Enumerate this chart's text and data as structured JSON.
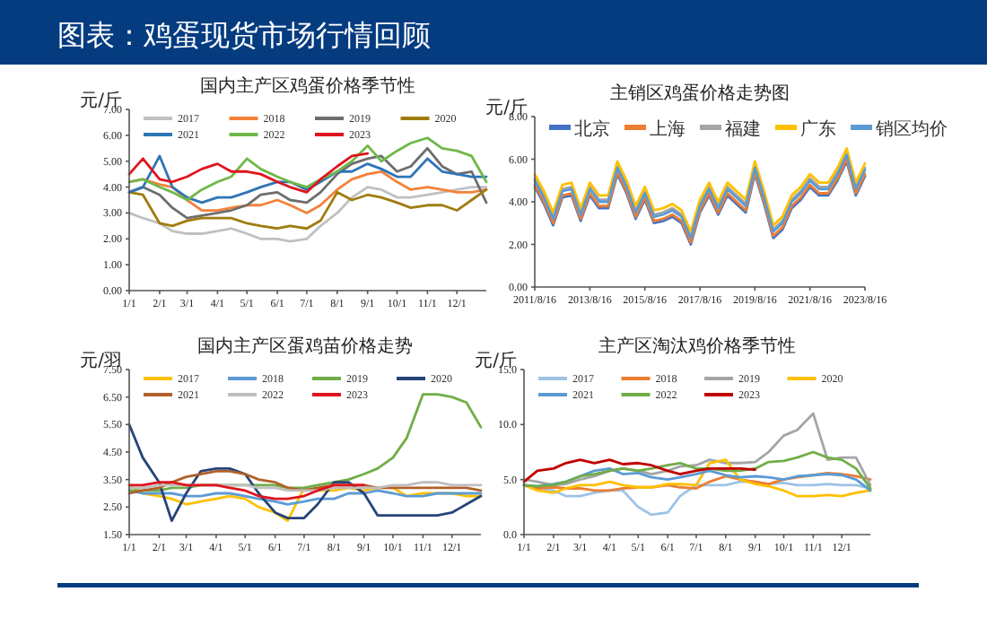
{
  "chart_data": [
    {
      "type": "line",
      "title": "图表：鸡蛋现货市场行情回顾",
      "subtitle": "国内主产区鸡蛋价格季节性",
      "ylabel": "元/斤",
      "legend": "top",
      "x": [
        "--01-01",
        "--01-15",
        "--02-01",
        "--02-14",
        "--03-01",
        "--03-16",
        "--04-01",
        "--04-15",
        "--05-01",
        "--05-15",
        "--06-01",
        "--06-14",
        "--07-01",
        "--07-15",
        "--08-01",
        "--08-16",
        "--09-01",
        "--09-15",
        "--10-01",
        "--10-15",
        "--11-01",
        "--11-16",
        "--12-01",
        "--12-16",
        "--12-31"
      ],
      "xlim": [
        "--01-01",
        "--12-31"
      ],
      "xticks": [
        {
          "value": "--01-01",
          "label": "1/1"
        },
        {
          "value": "--02-01",
          "label": "2/1"
        },
        {
          "value": "--03-01",
          "label": "3/1"
        },
        {
          "value": "--04-01",
          "label": "4/1"
        },
        {
          "value": "--05-01",
          "label": "5/1"
        },
        {
          "value": "--06-01",
          "label": "6/1"
        },
        {
          "value": "--07-01",
          "label": "7/1"
        },
        {
          "value": "--08-01",
          "label": "8/1"
        },
        {
          "value": "--09-01",
          "label": "9/1"
        },
        {
          "value": "--10-01",
          "label": "10/1"
        },
        {
          "value": "--11-01",
          "label": "11/1"
        },
        {
          "value": "--12-01",
          "label": "12/1"
        }
      ],
      "ylim": [
        0,
        7
      ],
      "yticks": [
        {
          "value": 0,
          "label": "0.00"
        },
        {
          "value": 1,
          "label": "1.00"
        },
        {
          "value": 2,
          "label": "2.00"
        },
        {
          "value": 3,
          "label": "3.00"
        },
        {
          "value": 4,
          "label": "4.00"
        },
        {
          "value": 5,
          "label": "5.00"
        },
        {
          "value": 6,
          "label": "6.00"
        },
        {
          "value": 7,
          "label": "7.00"
        }
      ],
      "series": [
        {
          "name": "2017",
          "color": "#c0c0c0",
          "values": [
            3.0,
            2.8,
            2.6,
            2.3,
            2.2,
            2.2,
            2.3,
            2.4,
            2.2,
            2.0,
            2.0,
            1.9,
            2.0,
            2.5,
            3.0,
            3.6,
            4.0,
            3.9,
            3.6,
            3.6,
            3.7,
            3.8,
            3.9,
            4.0,
            4.0
          ]
        },
        {
          "name": "2018",
          "color": "#f4813a",
          "values": [
            4.2,
            4.3,
            4.1,
            4.0,
            3.5,
            3.1,
            3.1,
            3.2,
            3.3,
            3.3,
            3.5,
            3.3,
            3.0,
            3.3,
            3.9,
            4.3,
            4.5,
            4.6,
            4.2,
            3.9,
            4.0,
            3.9,
            3.8,
            3.8,
            3.9
          ]
        },
        {
          "name": "2019",
          "color": "#6d6d6d",
          "values": [
            3.8,
            4.0,
            3.7,
            3.2,
            2.8,
            2.9,
            3.0,
            3.1,
            3.3,
            3.7,
            3.8,
            3.5,
            3.4,
            3.8,
            4.5,
            4.9,
            5.1,
            5.2,
            4.6,
            4.8,
            5.5,
            4.8,
            4.5,
            4.6,
            3.4
          ]
        },
        {
          "name": "2020",
          "color": "#a07c10",
          "values": [
            3.8,
            3.7,
            2.6,
            2.5,
            2.7,
            2.8,
            2.8,
            2.8,
            2.6,
            2.5,
            2.4,
            2.5,
            2.4,
            2.7,
            3.8,
            3.5,
            3.7,
            3.6,
            3.4,
            3.2,
            3.3,
            3.3,
            3.1,
            3.5,
            3.9
          ]
        },
        {
          "name": "2021",
          "color": "#2e75b6",
          "values": [
            3.8,
            4.0,
            5.2,
            4.0,
            3.6,
            3.4,
            3.6,
            3.6,
            3.8,
            4.0,
            4.2,
            4.2,
            3.9,
            4.2,
            4.6,
            4.6,
            4.9,
            4.7,
            4.4,
            4.4,
            5.1,
            4.6,
            4.5,
            4.4,
            4.4
          ]
        },
        {
          "name": "2022",
          "color": "#70b84a",
          "values": [
            4.2,
            4.3,
            4.0,
            3.8,
            3.5,
            3.9,
            4.2,
            4.4,
            5.1,
            4.7,
            4.4,
            4.2,
            4.0,
            4.3,
            4.6,
            5.0,
            5.6,
            5.0,
            5.4,
            5.7,
            5.9,
            5.5,
            5.4,
            5.2,
            4.2
          ]
        },
        {
          "name": "2023",
          "color": "#e0141e",
          "values": [
            4.5,
            5.1,
            4.3,
            4.2,
            4.4,
            4.7,
            4.9,
            4.6,
            4.6,
            4.5,
            4.2,
            4.0,
            3.8,
            4.3,
            4.8,
            5.2,
            5.3,
            null,
            null,
            null,
            null,
            null,
            null,
            null,
            null
          ]
        }
      ]
    },
    {
      "type": "line",
      "subtitle": "主销区鸡蛋价格走势图",
      "ylabel": "元/斤",
      "legend": "top",
      "x": [
        "2011-08-16",
        "2011-12-16",
        "2012-04-16",
        "2012-08-16",
        "2012-12-16",
        "2013-04-16",
        "2013-08-16",
        "2013-12-16",
        "2014-04-16",
        "2014-08-16",
        "2014-12-16",
        "2015-04-16",
        "2015-08-16",
        "2015-12-16",
        "2016-04-16",
        "2016-08-16",
        "2016-12-16",
        "2017-04-16",
        "2017-08-16",
        "2017-12-16",
        "2018-04-16",
        "2018-08-16",
        "2018-12-16",
        "2019-04-16",
        "2019-08-16",
        "2019-12-16",
        "2020-04-16",
        "2020-08-16",
        "2020-12-16",
        "2021-04-16",
        "2021-08-16",
        "2021-12-16",
        "2022-04-16",
        "2022-08-16",
        "2022-12-16",
        "2023-04-16",
        "2023-08-16"
      ],
      "xlim": [
        "2011-08-16",
        "2023-08-16"
      ],
      "xticks": [
        {
          "value": "2011-08-16",
          "label": "2011/8/16"
        },
        {
          "value": "2013-08-16",
          "label": "2013/8/16"
        },
        {
          "value": "2015-08-16",
          "label": "2015/8/16"
        },
        {
          "value": "2017-08-16",
          "label": "2017/8/16"
        },
        {
          "value": "2019-08-16",
          "label": "2019/8/16"
        },
        {
          "value": "2021-08-16",
          "label": "2021/8/16"
        },
        {
          "value": "2023-08-16",
          "label": "2023/8/16"
        }
      ],
      "ylim": [
        0,
        8
      ],
      "yticks": [
        {
          "value": 0,
          "label": "0.00"
        },
        {
          "value": 2,
          "label": "2.00"
        },
        {
          "value": 4,
          "label": "4.00"
        },
        {
          "value": 6,
          "label": "6.00"
        },
        {
          "value": 8,
          "label": "8.00"
        }
      ],
      "series": [
        {
          "name": "北京",
          "color": "#4472c4",
          "values": [
            4.7,
            3.9,
            2.9,
            4.2,
            4.3,
            3.1,
            4.3,
            3.7,
            3.7,
            5.3,
            4.4,
            3.2,
            4.1,
            3.0,
            3.1,
            3.3,
            3.0,
            2.0,
            3.5,
            4.3,
            3.4,
            4.3,
            3.9,
            3.5,
            5.3,
            3.9,
            2.3,
            2.7,
            3.7,
            4.1,
            4.7,
            4.3,
            4.3,
            5.0,
            5.9,
            4.3,
            5.2
          ]
        },
        {
          "name": "上海",
          "color": "#ed7d31",
          "values": [
            4.8,
            4.0,
            3.0,
            4.3,
            4.4,
            3.2,
            4.4,
            3.8,
            3.8,
            5.4,
            4.5,
            3.3,
            4.2,
            3.1,
            3.2,
            3.4,
            3.1,
            2.1,
            3.6,
            4.4,
            3.5,
            4.4,
            4.0,
            3.6,
            5.4,
            4.0,
            2.4,
            2.8,
            3.8,
            4.2,
            4.8,
            4.4,
            4.4,
            5.1,
            6.0,
            4.4,
            5.3
          ]
        },
        {
          "name": "福建",
          "color": "#a5a5a5",
          "values": [
            5.1,
            4.3,
            3.3,
            4.6,
            4.7,
            3.5,
            4.7,
            4.1,
            4.1,
            5.7,
            4.8,
            3.6,
            4.5,
            3.4,
            3.5,
            3.7,
            3.4,
            2.4,
            3.9,
            4.7,
            3.8,
            4.7,
            4.3,
            3.9,
            5.7,
            4.3,
            2.7,
            3.1,
            4.1,
            4.5,
            5.1,
            4.7,
            4.7,
            5.4,
            6.3,
            4.7,
            5.6
          ]
        },
        {
          "name": "广东",
          "color": "#ffc000",
          "values": [
            5.3,
            4.5,
            3.5,
            4.8,
            4.9,
            3.7,
            4.9,
            4.3,
            4.3,
            5.9,
            5.0,
            3.8,
            4.7,
            3.6,
            3.7,
            3.9,
            3.6,
            2.6,
            4.1,
            4.9,
            4.0,
            4.9,
            4.5,
            4.1,
            5.9,
            4.5,
            2.9,
            3.3,
            4.3,
            4.7,
            5.3,
            4.9,
            4.9,
            5.6,
            6.5,
            4.9,
            5.8
          ]
        },
        {
          "name": "销区均价",
          "color": "#5b9bd5",
          "values": [
            5.0,
            4.2,
            3.2,
            4.5,
            4.6,
            3.4,
            4.6,
            4.0,
            4.0,
            5.6,
            4.7,
            3.5,
            4.4,
            3.3,
            3.4,
            3.6,
            3.3,
            2.3,
            3.8,
            4.6,
            3.7,
            4.6,
            4.2,
            3.8,
            5.6,
            4.2,
            2.6,
            3.0,
            4.0,
            4.4,
            5.0,
            4.6,
            4.6,
            5.3,
            6.2,
            4.6,
            5.5
          ]
        }
      ]
    },
    {
      "type": "line",
      "subtitle": "国内主产区蛋鸡苗价格走势",
      "ylabel": "元/羽",
      "legend": "top",
      "x": [
        "--01-01",
        "--01-15",
        "--02-01",
        "--02-14",
        "--03-01",
        "--03-16",
        "--04-01",
        "--04-15",
        "--05-01",
        "--05-15",
        "--06-01",
        "--06-14",
        "--07-01",
        "--07-15",
        "--08-01",
        "--08-16",
        "--09-01",
        "--09-15",
        "--10-01",
        "--10-15",
        "--11-01",
        "--11-16",
        "--12-01",
        "--12-16",
        "--12-31"
      ],
      "xlim": [
        "--01-01",
        "--12-31"
      ],
      "xticks": [
        {
          "value": "--01-01",
          "label": "1/1"
        },
        {
          "value": "--02-01",
          "label": "2/1"
        },
        {
          "value": "--03-01",
          "label": "3/1"
        },
        {
          "value": "--04-01",
          "label": "4/1"
        },
        {
          "value": "--05-01",
          "label": "5/1"
        },
        {
          "value": "--06-01",
          "label": "6/1"
        },
        {
          "value": "--07-01",
          "label": "7/1"
        },
        {
          "value": "--08-01",
          "label": "8/1"
        },
        {
          "value": "--09-01",
          "label": "9/1"
        },
        {
          "value": "--10-01",
          "label": "10/1"
        },
        {
          "value": "--11-01",
          "label": "11/1"
        },
        {
          "value": "--12-01",
          "label": "12/1"
        }
      ],
      "ylim": [
        1.5,
        7.5
      ],
      "yticks": [
        {
          "value": 1.5,
          "label": "1.50"
        },
        {
          "value": 2.5,
          "label": "2.50"
        },
        {
          "value": 3.5,
          "label": "3.50"
        },
        {
          "value": 4.5,
          "label": "4.50"
        },
        {
          "value": 5.5,
          "label": "5.50"
        },
        {
          "value": 6.5,
          "label": "6.50"
        },
        {
          "value": 7.5,
          "label": "7.50"
        }
      ],
      "series": [
        {
          "name": "2017",
          "color": "#ffc000",
          "values": [
            3.3,
            3.0,
            2.9,
            2.8,
            2.6,
            2.7,
            2.8,
            2.9,
            2.8,
            2.5,
            2.3,
            2.0,
            3.2,
            3.1,
            3.1,
            3.2,
            3.1,
            3.2,
            3.2,
            2.9,
            3.0,
            3.0,
            3.0,
            2.9,
            2.9
          ]
        },
        {
          "name": "2018",
          "color": "#5b9bd5",
          "values": [
            3.1,
            3.0,
            3.0,
            3.0,
            2.9,
            2.9,
            3.0,
            3.0,
            2.9,
            2.8,
            2.7,
            2.6,
            2.7,
            2.8,
            2.8,
            3.0,
            3.0,
            3.1,
            3.0,
            2.9,
            2.9,
            3.0,
            3.0,
            3.0,
            3.0
          ]
        },
        {
          "name": "2019",
          "color": "#70ad47",
          "values": [
            3.1,
            3.1,
            3.1,
            3.2,
            3.2,
            3.3,
            3.3,
            3.3,
            3.3,
            3.3,
            3.3,
            3.2,
            3.2,
            3.3,
            3.4,
            3.5,
            3.7,
            3.9,
            4.3,
            5.0,
            6.6,
            6.6,
            6.5,
            6.3,
            5.4
          ]
        },
        {
          "name": "2020",
          "color": "#264478",
          "values": [
            5.5,
            4.3,
            3.4,
            2.0,
            3.0,
            3.8,
            3.9,
            3.9,
            3.7,
            3.0,
            2.3,
            2.1,
            2.1,
            2.6,
            3.4,
            3.4,
            3.0,
            2.2,
            2.2,
            2.2,
            2.2,
            2.2,
            2.3,
            2.6,
            2.9
          ]
        },
        {
          "name": "2021",
          "color": "#b0602a",
          "values": [
            3.0,
            3.1,
            3.2,
            3.4,
            3.6,
            3.7,
            3.8,
            3.8,
            3.7,
            3.5,
            3.4,
            3.2,
            3.1,
            3.2,
            3.3,
            3.3,
            3.3,
            3.2,
            3.2,
            3.2,
            3.2,
            3.2,
            3.2,
            3.2,
            3.1
          ]
        },
        {
          "name": "2022",
          "color": "#bfbfbf",
          "values": [
            3.2,
            3.2,
            3.3,
            3.3,
            3.3,
            3.3,
            3.3,
            3.3,
            3.3,
            3.2,
            3.2,
            3.1,
            3.1,
            3.1,
            3.2,
            3.2,
            3.2,
            3.2,
            3.3,
            3.3,
            3.4,
            3.4,
            3.3,
            3.3,
            3.3
          ]
        },
        {
          "name": "2023",
          "color": "#e0141e",
          "values": [
            3.3,
            3.3,
            3.4,
            3.4,
            3.3,
            3.3,
            3.3,
            3.2,
            3.1,
            2.9,
            2.8,
            2.8,
            2.9,
            3.1,
            3.3,
            3.3,
            3.3,
            null,
            null,
            null,
            null,
            null,
            null,
            null,
            null
          ]
        }
      ]
    },
    {
      "type": "line",
      "subtitle": "主产区淘汰鸡价格季节性",
      "ylabel": "元/斤",
      "legend": "top",
      "x": [
        "--01-01",
        "--01-15",
        "--02-01",
        "--02-14",
        "--03-01",
        "--03-16",
        "--04-01",
        "--04-15",
        "--05-01",
        "--05-15",
        "--06-01",
        "--06-14",
        "--07-01",
        "--07-15",
        "--08-01",
        "--08-16",
        "--09-01",
        "--09-15",
        "--10-01",
        "--10-15",
        "--11-01",
        "--11-16",
        "--12-01",
        "--12-16",
        "--12-31"
      ],
      "xlim": [
        "--01-01",
        "--12-31"
      ],
      "xticks": [
        {
          "value": "--01-01",
          "label": "1/1"
        },
        {
          "value": "--02-01",
          "label": "2/1"
        },
        {
          "value": "--03-01",
          "label": "3/1"
        },
        {
          "value": "--04-01",
          "label": "4/1"
        },
        {
          "value": "--05-01",
          "label": "5/1"
        },
        {
          "value": "--06-01",
          "label": "6/1"
        },
        {
          "value": "--07-01",
          "label": "7/1"
        },
        {
          "value": "--08-01",
          "label": "8/1"
        },
        {
          "value": "--09-01",
          "label": "9/1"
        },
        {
          "value": "--10-01",
          "label": "10/1"
        },
        {
          "value": "--11-01",
          "label": "11/1"
        },
        {
          "value": "--12-01",
          "label": "12/1"
        }
      ],
      "ylim": [
        0,
        15
      ],
      "yticks": [
        {
          "value": 0,
          "label": "0.0"
        },
        {
          "value": 5,
          "label": "5.0"
        },
        {
          "value": 10,
          "label": "10.0"
        },
        {
          "value": 15,
          "label": "15.0"
        }
      ],
      "series": [
        {
          "name": "2017",
          "color": "#9dc3e6",
          "values": [
            4.5,
            4.2,
            4.0,
            3.5,
            3.5,
            3.8,
            4.0,
            4.0,
            2.5,
            1.8,
            2.0,
            3.5,
            4.5,
            4.5,
            4.5,
            4.8,
            4.8,
            4.6,
            4.7,
            4.5,
            4.5,
            4.6,
            4.5,
            4.5,
            4.2
          ]
        },
        {
          "name": "2018",
          "color": "#ed7d31",
          "values": [
            4.5,
            4.2,
            4.3,
            4.2,
            4.2,
            4.0,
            4.0,
            4.2,
            4.3,
            4.3,
            4.5,
            4.3,
            4.2,
            4.8,
            5.3,
            5.0,
            4.8,
            4.6,
            5.0,
            5.2,
            5.4,
            5.6,
            5.5,
            5.3,
            5.0
          ]
        },
        {
          "name": "2019",
          "color": "#a5a5a5",
          "values": [
            5.0,
            4.8,
            4.5,
            4.6,
            5.0,
            5.3,
            5.8,
            6.0,
            5.8,
            5.5,
            5.8,
            6.2,
            6.3,
            6.8,
            6.5,
            6.5,
            6.6,
            7.5,
            9.0,
            9.5,
            11.0,
            6.8,
            7.0,
            7.0,
            4.5
          ]
        },
        {
          "name": "2020",
          "color": "#ffc000",
          "values": [
            4.5,
            4.0,
            3.8,
            4.2,
            4.5,
            4.5,
            4.8,
            4.5,
            4.3,
            4.3,
            4.6,
            4.6,
            4.5,
            6.5,
            6.8,
            5.0,
            4.6,
            4.4,
            4.0,
            3.5,
            3.5,
            3.6,
            3.5,
            3.8,
            4.0
          ]
        },
        {
          "name": "2021",
          "color": "#5b9bd5",
          "values": [
            4.5,
            4.4,
            4.6,
            4.8,
            5.3,
            5.8,
            6.0,
            5.5,
            5.6,
            5.2,
            5.0,
            5.2,
            5.5,
            5.8,
            5.4,
            5.2,
            5.3,
            5.2,
            5.0,
            5.3,
            5.4,
            5.5,
            5.4,
            5.0,
            4.0
          ]
        },
        {
          "name": "2022",
          "color": "#70ad47",
          "values": [
            4.5,
            4.4,
            4.5,
            4.8,
            5.3,
            5.5,
            5.8,
            6.0,
            5.8,
            6.0,
            6.3,
            6.5,
            6.0,
            6.0,
            5.8,
            5.8,
            6.0,
            6.6,
            6.7,
            7.0,
            7.5,
            7.0,
            6.8,
            6.0,
            4.2
          ]
        },
        {
          "name": "2023",
          "color": "#c00000",
          "values": [
            4.8,
            5.8,
            6.0,
            6.5,
            6.8,
            6.5,
            6.8,
            6.4,
            6.5,
            6.3,
            5.8,
            5.5,
            5.8,
            6.0,
            6.0,
            6.0,
            5.9,
            null,
            null,
            null,
            null,
            null,
            null,
            null,
            null
          ]
        }
      ]
    }
  ]
}
